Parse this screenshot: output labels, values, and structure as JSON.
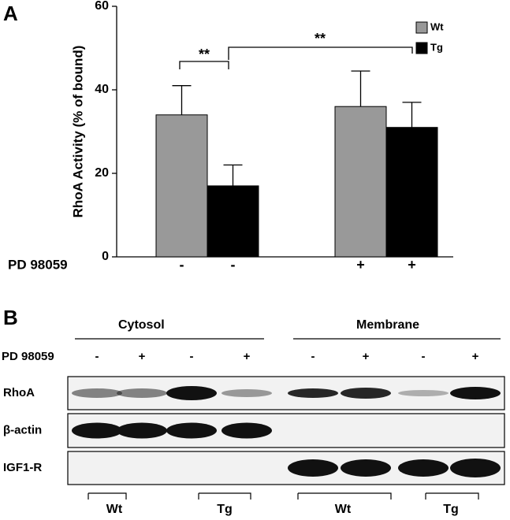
{
  "panel_labels": [
    "A",
    "B"
  ],
  "chart_data": {
    "type": "bar",
    "ylabel": "RhoA Activity (% of bound)",
    "xlabel": "PD 98059",
    "categories": [
      "-",
      "+"
    ],
    "series": [
      {
        "name": "Wt",
        "color": "#999999",
        "values": [
          34,
          36
        ],
        "errors": [
          7,
          8.5
        ]
      },
      {
        "name": "Tg",
        "color": "#000000",
        "values": [
          17,
          31
        ],
        "errors": [
          5,
          6
        ]
      }
    ],
    "ylim": [
      0,
      60
    ],
    "yticks": [
      0,
      20,
      40,
      60
    ],
    "legend": "upper right",
    "annotations": [
      "**",
      "**"
    ]
  },
  "blot": {
    "fractions": [
      "Cytosol",
      "Membrane"
    ],
    "treatment_label": "PD 98059",
    "treatments": [
      "-",
      "+",
      "-",
      "+",
      "-",
      "+",
      "-",
      "+"
    ],
    "rows": [
      "RhoA",
      "β-actin",
      "IGF1-R"
    ],
    "genotypes": [
      "Wt",
      "Tg",
      "Wt",
      "Tg"
    ]
  }
}
